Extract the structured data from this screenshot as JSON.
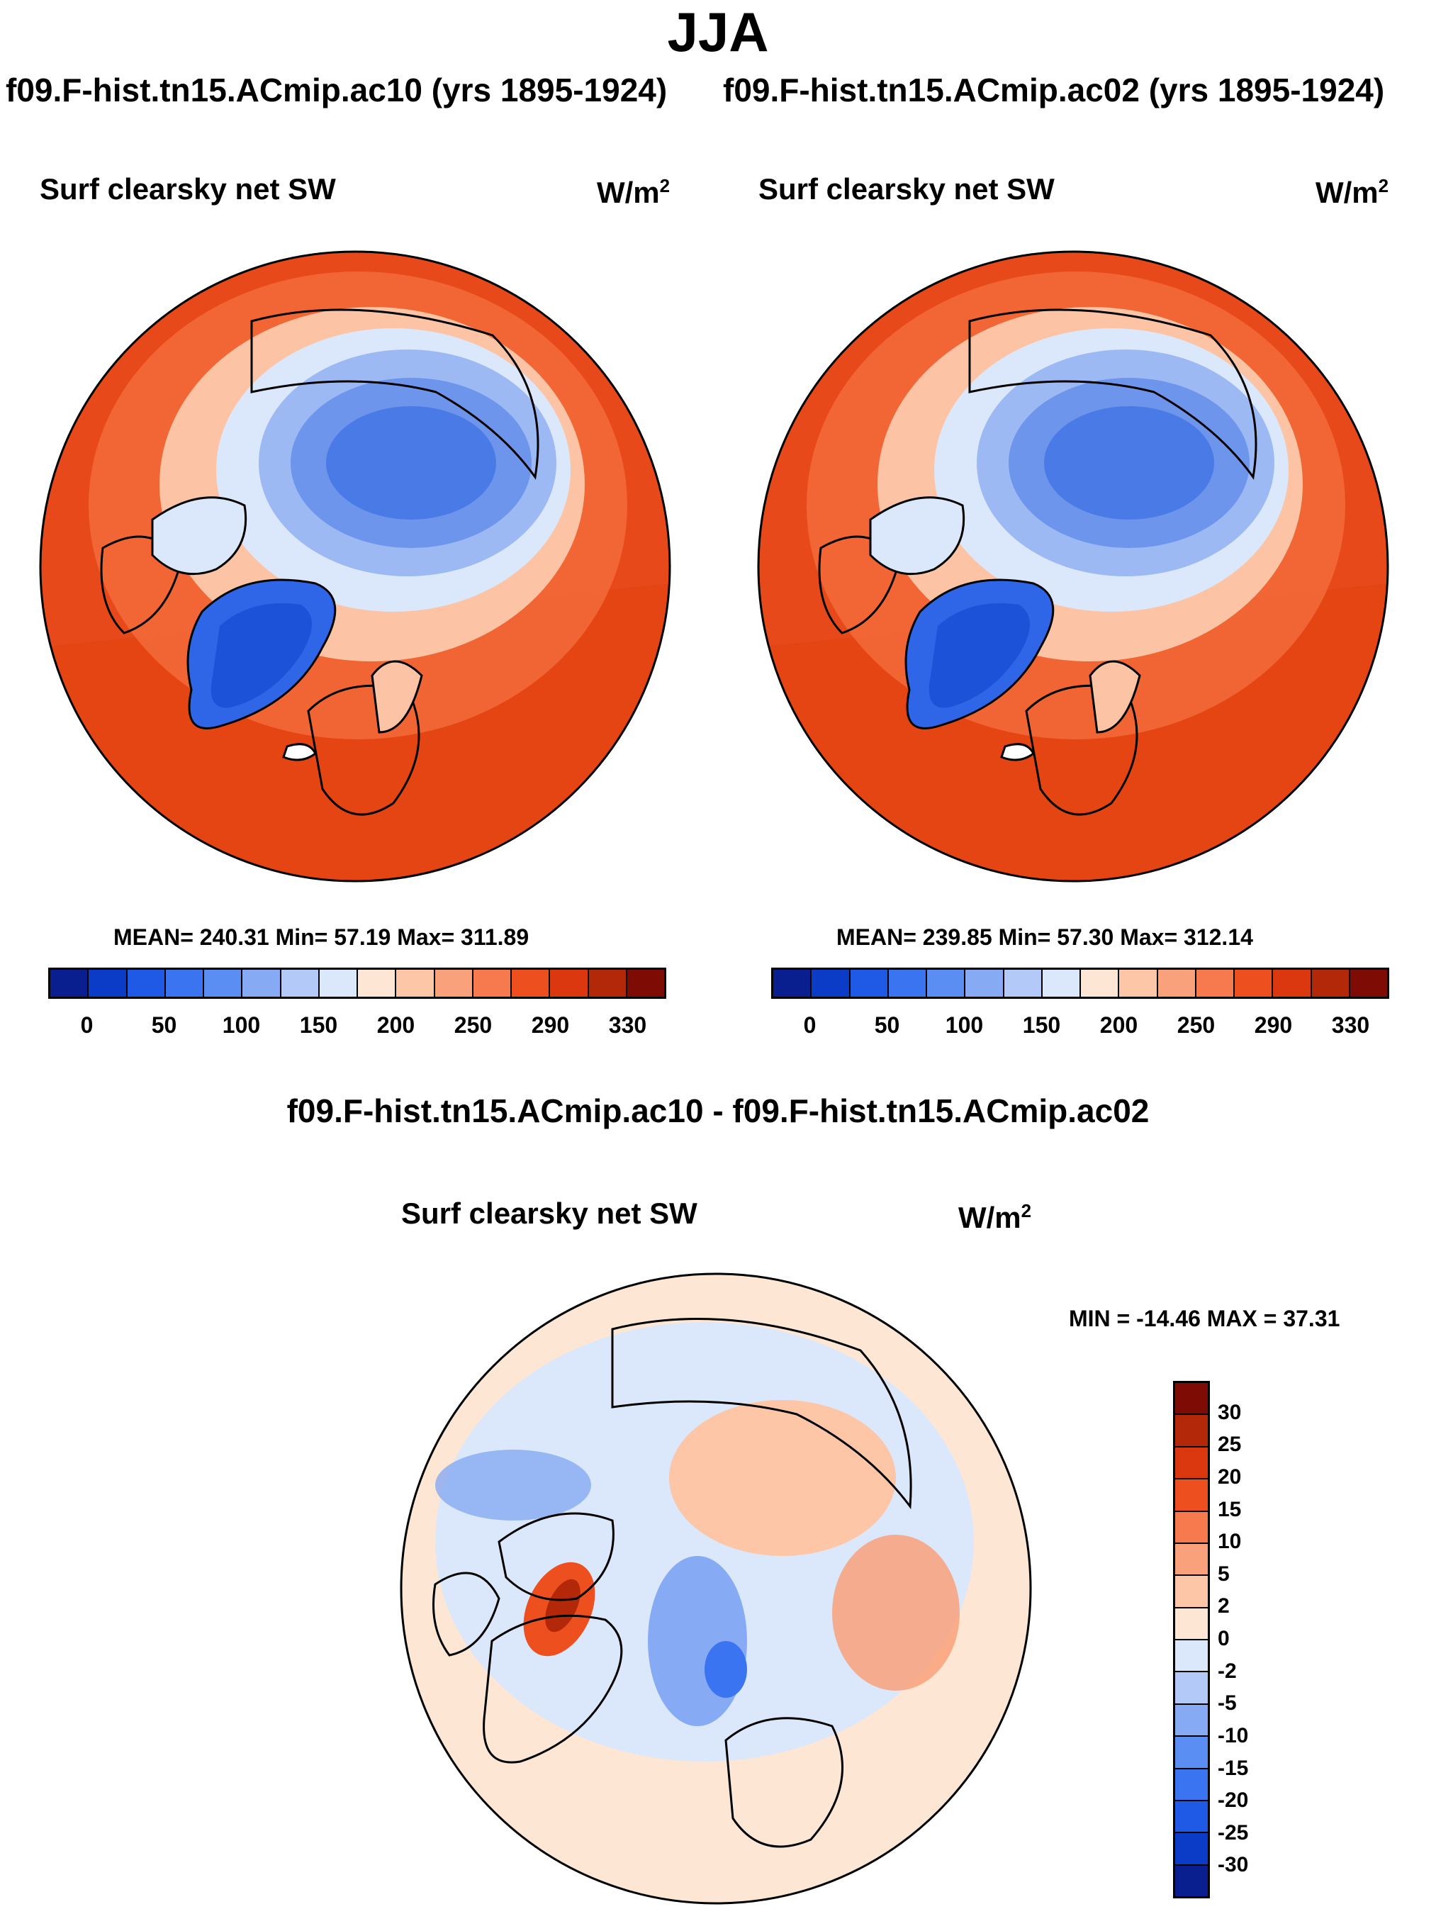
{
  "title": "JJA",
  "panels": [
    {
      "run_label": "f09.F-hist.tn15.ACmip.ac10 (yrs 1895-1924)",
      "variable": "Surf clearsky net SW",
      "units": "W/m",
      "units_exp": "2",
      "stats": "MEAN= 240.31  Min=  57.19  Max= 311.89",
      "colorbar_ticks": [
        "0",
        "50",
        "100",
        "150",
        "200",
        "250",
        "290",
        "330"
      ]
    },
    {
      "run_label": "f09.F-hist.tn15.ACmip.ac02 (yrs 1895-1924)",
      "variable": "Surf clearsky net SW",
      "units": "W/m",
      "units_exp": "2",
      "stats": "MEAN= 239.85  Min=  57.30  Max= 312.14",
      "colorbar_ticks": [
        "0",
        "50",
        "100",
        "150",
        "200",
        "250",
        "290",
        "330"
      ]
    }
  ],
  "colorbar_abs": {
    "colors": [
      "#0a1f8f",
      "#0b3cc8",
      "#1f5ae6",
      "#3b74f0",
      "#5b8ef2",
      "#86aaf3",
      "#b3c9f7",
      "#dbe8fb",
      "#fde6d4",
      "#fcc6a7",
      "#f9a17a",
      "#f67a4d",
      "#ee4f1f",
      "#dc3810",
      "#b32808",
      "#7e0c04"
    ]
  },
  "difference": {
    "title": "f09.F-hist.tn15.ACmip.ac10 - f09.F-hist.tn15.ACmip.ac02",
    "variable": "Surf clearsky net SW",
    "units": "W/m",
    "units_exp": "2",
    "minmax": "MIN = -14.46 MAX =  37.31",
    "colorbar_ticks": [
      "30",
      "25",
      "20",
      "15",
      "10",
      "5",
      "2",
      "0",
      "-2",
      "-5",
      "-10",
      "-15",
      "-20",
      "-25",
      "-30"
    ],
    "colors": [
      "#7e0c04",
      "#b32808",
      "#dc3810",
      "#ee4f1f",
      "#f67a4d",
      "#f9a17a",
      "#fcc6a7",
      "#fde6d4",
      "#dbe8fb",
      "#b3c9f7",
      "#86aaf3",
      "#5b8ef2",
      "#3b74f0",
      "#1f5ae6",
      "#0b3cc8",
      "#0a1f8f"
    ]
  }
}
